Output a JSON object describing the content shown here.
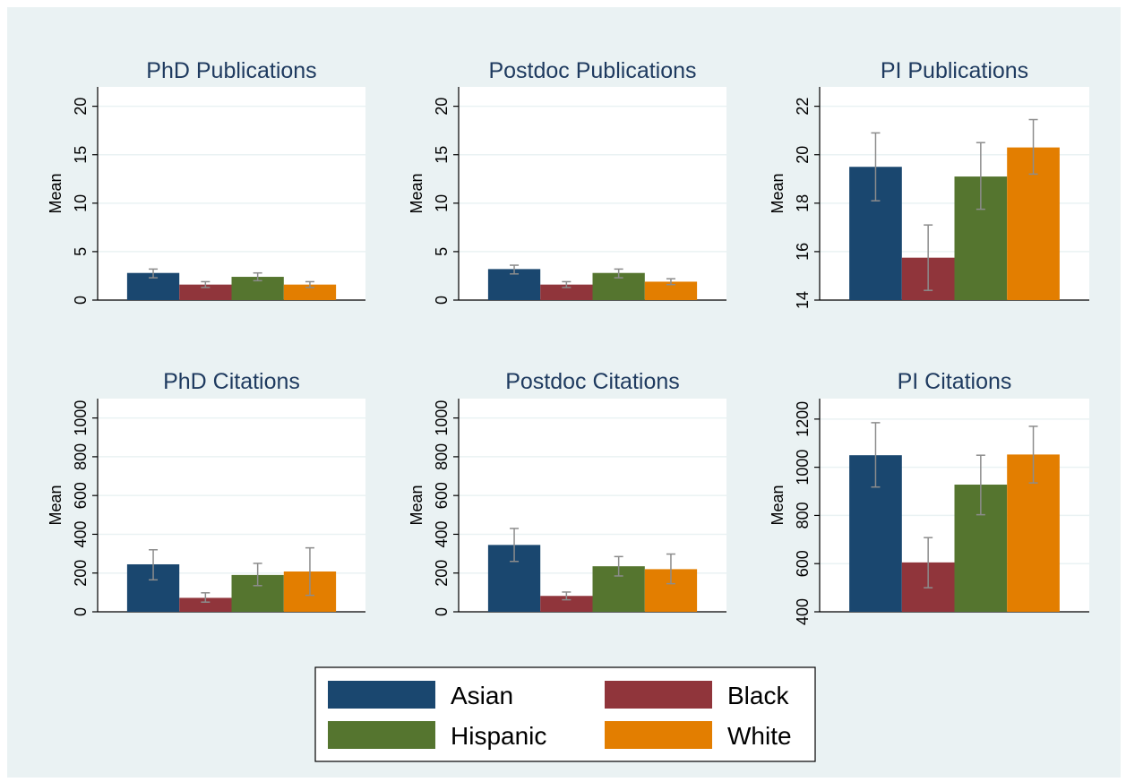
{
  "colors": {
    "background": "#eaf2f3",
    "plot_background": "#ffffff",
    "gridline": "#eaf2f3",
    "title": "#1e3a5f",
    "errorbar": "#8c8c8c"
  },
  "chart_data": [
    {
      "type": "bar",
      "title": "PhD Publications",
      "ylabel": "Mean",
      "ylim": [
        0,
        22
      ],
      "yticks": [
        0,
        5,
        10,
        15,
        20
      ],
      "series": [
        {
          "name": "Asian",
          "value": 2.8,
          "ci": [
            2.3,
            3.2
          ]
        },
        {
          "name": "Black",
          "value": 1.6,
          "ci": [
            1.3,
            1.9
          ]
        },
        {
          "name": "Hispanic",
          "value": 2.4,
          "ci": [
            2.0,
            2.8
          ]
        },
        {
          "name": "White",
          "value": 1.6,
          "ci": [
            1.3,
            1.9
          ]
        }
      ]
    },
    {
      "type": "bar",
      "title": "Postdoc Publications",
      "ylabel": "Mean",
      "ylim": [
        0,
        22
      ],
      "yticks": [
        0,
        5,
        10,
        15,
        20
      ],
      "series": [
        {
          "name": "Asian",
          "value": 3.2,
          "ci": [
            2.7,
            3.6
          ]
        },
        {
          "name": "Black",
          "value": 1.6,
          "ci": [
            1.3,
            1.9
          ]
        },
        {
          "name": "Hispanic",
          "value": 2.8,
          "ci": [
            2.3,
            3.2
          ]
        },
        {
          "name": "White",
          "value": 1.9,
          "ci": [
            1.6,
            2.2
          ]
        }
      ]
    },
    {
      "type": "bar",
      "title": "PI Publications",
      "ylabel": "Mean",
      "ylim": [
        14,
        22.8
      ],
      "yticks": [
        14,
        16,
        18,
        20,
        22
      ],
      "series": [
        {
          "name": "Asian",
          "value": 19.5,
          "ci": [
            18.1,
            20.9
          ]
        },
        {
          "name": "Black",
          "value": 15.75,
          "ci": [
            14.4,
            17.1
          ]
        },
        {
          "name": "Hispanic",
          "value": 19.1,
          "ci": [
            17.75,
            20.5
          ]
        },
        {
          "name": "White",
          "value": 20.3,
          "ci": [
            19.2,
            21.45
          ]
        }
      ]
    },
    {
      "type": "bar",
      "title": "PhD Citations",
      "ylabel": "Mean",
      "ylim": [
        0,
        1100
      ],
      "yticks": [
        0,
        200,
        400,
        600,
        800,
        1000
      ],
      "series": [
        {
          "name": "Asian",
          "value": 245,
          "ci": [
            165,
            320
          ]
        },
        {
          "name": "Black",
          "value": 72,
          "ci": [
            50,
            98
          ]
        },
        {
          "name": "Hispanic",
          "value": 190,
          "ci": [
            135,
            250
          ]
        },
        {
          "name": "White",
          "value": 208,
          "ci": [
            85,
            330
          ]
        }
      ]
    },
    {
      "type": "bar",
      "title": "Postdoc Citations",
      "ylabel": "Mean",
      "ylim": [
        0,
        1100
      ],
      "yticks": [
        0,
        200,
        400,
        600,
        800,
        1000
      ],
      "series": [
        {
          "name": "Asian",
          "value": 345,
          "ci": [
            260,
            430
          ]
        },
        {
          "name": "Black",
          "value": 82,
          "ci": [
            62,
            102
          ]
        },
        {
          "name": "Hispanic",
          "value": 235,
          "ci": [
            185,
            285
          ]
        },
        {
          "name": "White",
          "value": 220,
          "ci": [
            145,
            298
          ]
        }
      ]
    },
    {
      "type": "bar",
      "title": "PI Citations",
      "ylabel": "Mean",
      "ylim": [
        400,
        1285
      ],
      "yticks": [
        400,
        600,
        800,
        1000,
        1200
      ],
      "series": [
        {
          "name": "Asian",
          "value": 1050,
          "ci": [
            918,
            1185
          ]
        },
        {
          "name": "Black",
          "value": 605,
          "ci": [
            500,
            708
          ]
        },
        {
          "name": "Hispanic",
          "value": 928,
          "ci": [
            803,
            1050
          ]
        },
        {
          "name": "White",
          "value": 1053,
          "ci": [
            935,
            1170
          ]
        }
      ]
    }
  ],
  "legend": {
    "position": "bottom-center",
    "entries": [
      {
        "label": "Asian",
        "color": "#1a476f"
      },
      {
        "label": "Black",
        "color": "#90353b"
      },
      {
        "label": "Hispanic",
        "color": "#55752f"
      },
      {
        "label": "White",
        "color": "#e37e00"
      }
    ]
  }
}
